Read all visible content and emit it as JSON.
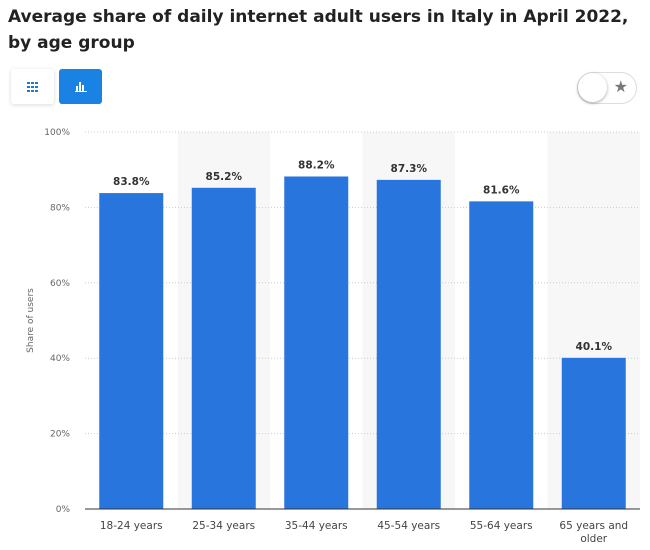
{
  "chart_data": {
    "type": "bar",
    "title": "Average share of daily internet adult users in Italy in April 2022, by age group",
    "xlabel": "",
    "ylabel": "Share of users",
    "categories": [
      "18-24 years",
      "25-34 years",
      "35-44 years",
      "45-54 years",
      "55-64 years",
      "65 years and older"
    ],
    "values": [
      83.8,
      85.2,
      88.2,
      87.3,
      81.6,
      40.1
    ],
    "data_labels": [
      "83.8%",
      "85.2%",
      "88.2%",
      "87.3%",
      "81.6%",
      "40.1%"
    ],
    "ylim": [
      0,
      100
    ],
    "yticks": [
      "0%",
      "20%",
      "40%",
      "60%",
      "80%",
      "100%"
    ],
    "grid": true,
    "bar_color": "#2876dd"
  },
  "toolbar": {
    "table_icon": "grid-icon",
    "chart_icon": "bar-chart-icon",
    "favorite_icon": "star-icon",
    "star_glyph": "★"
  }
}
